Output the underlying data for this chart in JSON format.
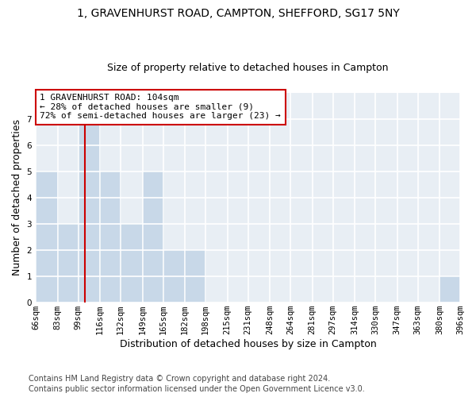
{
  "title1": "1, GRAVENHURST ROAD, CAMPTON, SHEFFORD, SG17 5NY",
  "title2": "Size of property relative to detached houses in Campton",
  "xlabel": "Distribution of detached houses by size in Campton",
  "ylabel": "Number of detached properties",
  "bin_edges": [
    66,
    83,
    99,
    116,
    132,
    149,
    165,
    182,
    198,
    215,
    231,
    248,
    264,
    281,
    297,
    314,
    330,
    347,
    363,
    380,
    396
  ],
  "counts": [
    5,
    3,
    7,
    5,
    3,
    5,
    2,
    2,
    0,
    0,
    0,
    0,
    0,
    0,
    0,
    0,
    0,
    0,
    0,
    1
  ],
  "bar_color": "#c8d8e8",
  "bar_edge_color": "#9ab8d0",
  "reference_line_x": 104,
  "reference_line_color": "#cc0000",
  "annotation_line1": "1 GRAVENHURST ROAD: 104sqm",
  "annotation_line2": "← 28% of detached houses are smaller (9)",
  "annotation_line3": "72% of semi-detached houses are larger (23) →",
  "annotation_box_color": "#ffffff",
  "annotation_box_edge_color": "#cc0000",
  "ylim_max": 8,
  "yticks": [
    0,
    1,
    2,
    3,
    4,
    5,
    6,
    7
  ],
  "footer1": "Contains HM Land Registry data © Crown copyright and database right 2024.",
  "footer2": "Contains public sector information licensed under the Open Government Licence v3.0.",
  "fig_bg_color": "#ffffff",
  "ax_bg_color": "#e8eef4",
  "grid_color": "#ffffff",
  "title1_fontsize": 10,
  "title2_fontsize": 9,
  "axis_label_fontsize": 9,
  "tick_fontsize": 7.5,
  "annotation_fontsize": 8,
  "footer_fontsize": 7
}
